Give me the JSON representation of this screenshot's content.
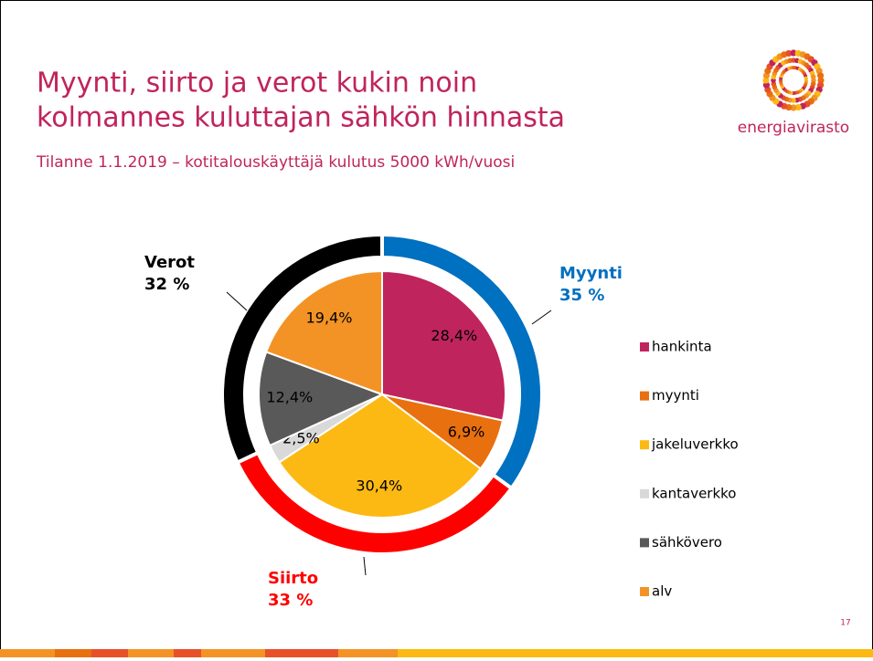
{
  "header": {
    "title_lines": [
      "Myynti, siirto ja verot kukin noin",
      "kolmannes kuluttajan sähkön hinnasta"
    ],
    "subtitle": "Tilanne 1.1.2019 – kotitalouskäyttäjä kulutus 5000 kWh/vuosi",
    "logo": "energiavirasto",
    "page_number": "17"
  },
  "chart_data": {
    "type": "pie",
    "categories": [
      "hankinta",
      "myynti",
      "jakeluverkko",
      "kantaverkko",
      "sähkövero",
      "alv"
    ],
    "values": [
      28.4,
      6.9,
      30.4,
      2.5,
      12.4,
      19.4
    ],
    "value_labels": [
      "28,4%",
      "6,9%",
      "30,4%",
      "2,5%",
      "12,4%",
      "19,4%"
    ],
    "colors": [
      "#c0245c",
      "#e8700f",
      "#fdb913",
      "#d9d9d9",
      "#595959",
      "#f39325"
    ],
    "outer_ring": {
      "categories": [
        "Myynti",
        "Siirto",
        "Verot"
      ],
      "values": [
        35,
        33,
        32
      ],
      "value_labels": [
        "35 %",
        "33 %",
        "32 %"
      ],
      "colors": [
        "#0070c0",
        "#ff0000",
        "#000000"
      ]
    },
    "legend": "right"
  }
}
